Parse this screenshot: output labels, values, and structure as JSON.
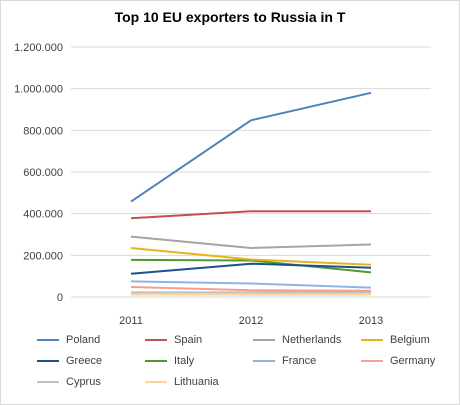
{
  "chart_data": {
    "type": "line",
    "title": "Top 10 EU exporters to Russia in T",
    "xlabel": "",
    "ylabel": "",
    "categories": [
      "2011",
      "2012",
      "2013"
    ],
    "ylim": [
      0,
      1200000
    ],
    "yticks": [
      "0",
      "200.000",
      "400.000",
      "600.000",
      "800.000",
      "1.000.000",
      "1.200.000"
    ],
    "grid": true,
    "legend_position": "bottom",
    "series": [
      {
        "name": "Poland",
        "color": "#4f81bd",
        "values": [
          458000,
          848000,
          980000
        ]
      },
      {
        "name": "Spain",
        "color": "#c0504d",
        "values": [
          378000,
          412000,
          412000
        ]
      },
      {
        "name": "Netherlands",
        "color": "#a5a5a5",
        "values": [
          290000,
          235000,
          252000
        ]
      },
      {
        "name": "Belgium",
        "color": "#e6b415",
        "values": [
          235000,
          180000,
          155000
        ]
      },
      {
        "name": "Greece",
        "color": "#1f4e8c",
        "values": [
          112000,
          160000,
          140000
        ]
      },
      {
        "name": "Italy",
        "color": "#4e9a2e",
        "values": [
          178000,
          175000,
          118000
        ]
      },
      {
        "name": "France",
        "color": "#8eb4e3",
        "values": [
          75000,
          65000,
          45000
        ]
      },
      {
        "name": "Germany",
        "color": "#f4a08c",
        "values": [
          48000,
          32000,
          30000
        ]
      },
      {
        "name": "Cyprus",
        "color": "#c0c0c0",
        "values": [
          22000,
          22000,
          22000
        ]
      },
      {
        "name": "Lithuania",
        "color": "#fcd597",
        "values": [
          12000,
          12000,
          12000
        ]
      }
    ]
  }
}
